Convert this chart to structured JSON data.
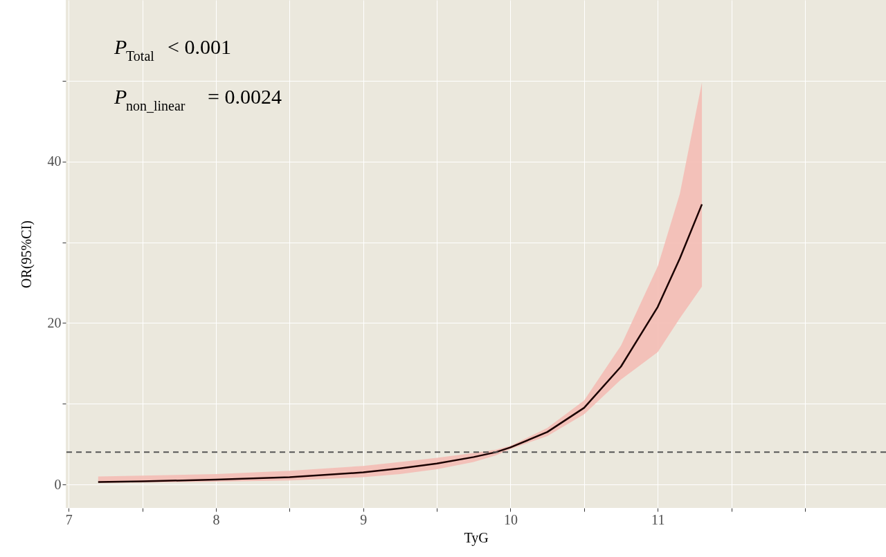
{
  "chart_data": {
    "type": "line",
    "xlabel": "TyG",
    "ylabel": "OR(95%CI)",
    "x": [
      7.2,
      7.5,
      8,
      8.5,
      9,
      9.25,
      9.5,
      9.75,
      9.9,
      10,
      10.25,
      10.5,
      10.75,
      11,
      11.15,
      11.3
    ],
    "series": [
      {
        "color": "#1a0000",
        "values": [
          0.3,
          0.4,
          0.6,
          0.9,
          1.5,
          2.0,
          2.6,
          3.4,
          4.0,
          4.6,
          6.5,
          9.5,
          14.6,
          22,
          28,
          34.7
        ],
        "lower": [
          0.2,
          0.25,
          0.35,
          0.5,
          0.9,
          1.3,
          1.9,
          2.8,
          3.6,
          4.4,
          6.0,
          8.7,
          13,
          16.4,
          20.6,
          24.5
        ],
        "upper": [
          1.0,
          1.1,
          1.3,
          1.7,
          2.3,
          2.8,
          3.3,
          3.9,
          4.3,
          4.8,
          7.0,
          10.4,
          17.2,
          27,
          36,
          49.8
        ]
      }
    ],
    "xlim": [
      6.98,
      12.55
    ],
    "ylim": [
      -2.9,
      60
    ],
    "xticks": [
      7,
      {
        "value": 7.5,
        "label": null
      },
      8,
      {
        "value": 8.5,
        "label": null
      },
      9,
      {
        "value": 9.5,
        "label": null
      },
      10,
      {
        "value": 10.5,
        "label": null
      },
      11,
      {
        "value": 11.5,
        "label": null
      },
      {
        "value": 12,
        "label": null
      }
    ],
    "yticks": [
      0,
      {
        "value": 10,
        "label": null
      },
      20,
      {
        "value": 30,
        "label": null
      },
      40,
      {
        "value": 50,
        "label": null
      }
    ],
    "ref_lines": [
      {
        "axis": "y",
        "value": 4,
        "line_style": "dashed",
        "color": "#555555"
      }
    ],
    "annotations": [
      "P$_{Total}$ < 0.001",
      "P$_{non_linear}$ = 0.0024"
    ],
    "grid": true,
    "line_style": "solid",
    "marker": "none"
  }
}
